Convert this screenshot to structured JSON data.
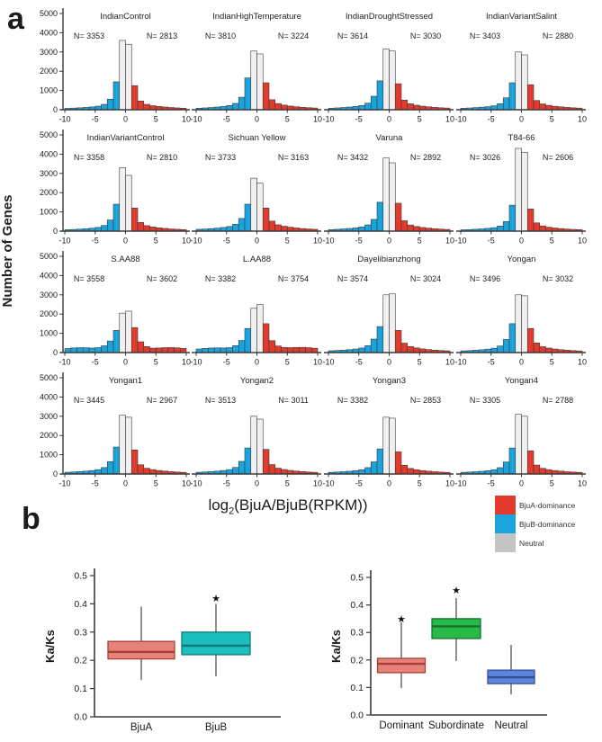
{
  "figure": {
    "panel_a_label": "a",
    "panel_b_label": "b",
    "x_axis_label": {
      "base": "log",
      "sub": "2",
      "rest": "(BjuA/BjuB(RPKM))"
    },
    "legend": [
      {
        "label": "BjuA-dominance",
        "color": "#E23B2E"
      },
      {
        "label": "BjuB-dominance",
        "color": "#1BA3DC"
      },
      {
        "label": "Neutral",
        "color": "#C4C4C4"
      }
    ]
  },
  "chart_data": [
    {
      "type": "bar",
      "subtype": "histogram-grid",
      "ylabel": "Number of Genes",
      "xlabel": "log2(BjuA/BjuB(RPKM))",
      "bin_edges_range": [
        -10,
        10
      ],
      "bin_width": 1,
      "xticks": [
        -10,
        -5,
        0,
        5,
        10
      ],
      "ylim": [
        0,
        5000
      ],
      "yticks": [
        0,
        1000,
        2000,
        3000,
        4000,
        5000
      ],
      "n_prefix": "N=",
      "colors": {
        "bjuB_dominance": "#1BA3DC",
        "bjuA_dominance": "#E23B2E",
        "neutral_fill": "#F0F0F0",
        "bar_stroke": "#3a3a3a"
      },
      "panels": [
        {
          "title": "IndianControl",
          "n_left": 3353,
          "n_right": 2813,
          "heights": [
            70,
            85,
            100,
            120,
            145,
            185,
            280,
            550,
            1450,
            3600,
            3400,
            1250,
            450,
            280,
            210,
            170,
            140,
            115,
            95,
            80
          ]
        },
        {
          "title": "IndianHighTemperature",
          "n_left": 3810,
          "n_right": 3224,
          "heights": [
            80,
            95,
            115,
            140,
            170,
            220,
            330,
            650,
            1650,
            3050,
            2900,
            1400,
            520,
            320,
            240,
            190,
            155,
            125,
            105,
            90
          ]
        },
        {
          "title": "IndianDroughtStressed",
          "n_left": 3614,
          "n_right": 3030,
          "heights": [
            80,
            95,
            115,
            140,
            170,
            220,
            340,
            700,
            1500,
            3150,
            3050,
            1350,
            500,
            310,
            235,
            185,
            150,
            122,
            102,
            88
          ]
        },
        {
          "title": "IndianVariantSalint",
          "n_left": 3403,
          "n_right": 2880,
          "heights": [
            78,
            92,
            110,
            132,
            160,
            205,
            310,
            620,
            1400,
            3000,
            2850,
            1300,
            480,
            300,
            228,
            180,
            148,
            120,
            100,
            85
          ]
        },
        {
          "title": "IndianVariantControl",
          "n_left": 3358,
          "n_right": 2810,
          "heights": [
            75,
            88,
            105,
            125,
            152,
            195,
            295,
            580,
            1400,
            3300,
            2900,
            1200,
            450,
            285,
            218,
            172,
            142,
            115,
            96,
            82
          ]
        },
        {
          "title": "Sichuan Yellow",
          "n_left": 3733,
          "n_right": 3163,
          "heights": [
            95,
            110,
            130,
            155,
            190,
            240,
            360,
            660,
            1400,
            2750,
            2500,
            1200,
            520,
            330,
            255,
            205,
            165,
            135,
            112,
            95
          ]
        },
        {
          "title": "Varuna",
          "n_left": 3432,
          "n_right": 2892,
          "heights": [
            82,
            96,
            115,
            138,
            168,
            215,
            325,
            610,
            1500,
            3800,
            3550,
            1450,
            540,
            320,
            242,
            190,
            155,
            125,
            104,
            88
          ]
        },
        {
          "title": "T84-66",
          "n_left": 3026,
          "n_right": 2606,
          "heights": [
            70,
            82,
            98,
            117,
            142,
            180,
            265,
            500,
            1350,
            4300,
            4100,
            1150,
            430,
            270,
            205,
            162,
            133,
            108,
            90,
            78
          ]
        },
        {
          "title": "S.AA88",
          "n_left": 3558,
          "n_right": 3602,
          "heights": [
            210,
            240,
            255,
            250,
            235,
            255,
            350,
            600,
            1150,
            2050,
            2150,
            1300,
            560,
            310,
            230,
            240,
            255,
            260,
            245,
            215
          ]
        },
        {
          "title": "L.AA88",
          "n_left": 3382,
          "n_right": 3754,
          "heights": [
            185,
            215,
            235,
            245,
            238,
            255,
            360,
            630,
            1250,
            2300,
            2500,
            1500,
            620,
            340,
            265,
            255,
            265,
            272,
            255,
            225
          ]
        },
        {
          "title": "Dayelibianzhong",
          "n_left": 3574,
          "n_right": 3024,
          "heights": [
            92,
            108,
            128,
            152,
            185,
            235,
            355,
            700,
            1350,
            3000,
            3050,
            1150,
            490,
            315,
            242,
            192,
            156,
            127,
            106,
            90
          ]
        },
        {
          "title": "Yongan",
          "n_left": 3496,
          "n_right": 3032,
          "heights": [
            88,
            102,
            122,
            145,
            178,
            225,
            340,
            680,
            1500,
            3000,
            2950,
            1250,
            500,
            305,
            234,
            186,
            151,
            123,
            102,
            87
          ]
        },
        {
          "title": "Yongan1",
          "n_left": 3445,
          "n_right": 2967,
          "heights": [
            90,
            104,
            122,
            146,
            178,
            224,
            335,
            640,
            1400,
            3050,
            2950,
            1250,
            478,
            298,
            228,
            182,
            149,
            120,
            100,
            86
          ]
        },
        {
          "title": "Yongan2",
          "n_left": 3513,
          "n_right": 3011,
          "heights": [
            90,
            105,
            124,
            148,
            180,
            228,
            340,
            655,
            1350,
            3000,
            2850,
            1280,
            488,
            302,
            232,
            185,
            151,
            122,
            102,
            87
          ]
        },
        {
          "title": "Yongan3",
          "n_left": 3382,
          "n_right": 2853,
          "heights": [
            88,
            102,
            120,
            143,
            174,
            220,
            330,
            630,
            1300,
            2950,
            2900,
            1150,
            455,
            288,
            222,
            177,
            145,
            117,
            98,
            84
          ]
        },
        {
          "title": "Yongan4",
          "n_left": 3305,
          "n_right": 2788,
          "heights": [
            86,
            100,
            118,
            140,
            172,
            218,
            328,
            625,
            1350,
            3100,
            3000,
            1200,
            465,
            293,
            225,
            180,
            147,
            118,
            99,
            85
          ]
        }
      ]
    },
    {
      "type": "box",
      "ylabel": "Ka/Ks",
      "ylim": [
        0,
        0.5
      ],
      "yticks": [
        0.0,
        0.1,
        0.2,
        0.3,
        0.4,
        0.5
      ],
      "plots": [
        {
          "boxes": [
            {
              "category": "BjuA",
              "whisker_low": 0.13,
              "q1": 0.205,
              "median": 0.23,
              "q3": 0.267,
              "whisker_high": 0.39,
              "fill": "#E5837A",
              "edge": "#A93E32",
              "star": null
            },
            {
              "category": "BjuB",
              "whisker_low": 0.143,
              "q1": 0.22,
              "median": 0.252,
              "q3": 0.3,
              "whisker_high": 0.4,
              "fill": "#1CBFBD",
              "edge": "#0F7C7B",
              "star": 0.42
            }
          ]
        },
        {
          "boxes": [
            {
              "category": "Dominant",
              "whisker_low": 0.098,
              "q1": 0.154,
              "median": 0.186,
              "q3": 0.206,
              "whisker_high": 0.337,
              "fill": "#E5837A",
              "edge": "#A93E32",
              "star": 0.35
            },
            {
              "category": "Subordinate",
              "whisker_low": 0.196,
              "q1": 0.278,
              "median": 0.322,
              "q3": 0.35,
              "whisker_high": 0.425,
              "fill": "#27BA46",
              "edge": "#17732B",
              "star": 0.455
            },
            {
              "category": "Neutral",
              "whisker_low": 0.075,
              "q1": 0.114,
              "median": 0.137,
              "q3": 0.163,
              "whisker_high": 0.255,
              "fill": "#5B86DB",
              "edge": "#2F4F9E",
              "star": null
            }
          ]
        }
      ]
    }
  ]
}
